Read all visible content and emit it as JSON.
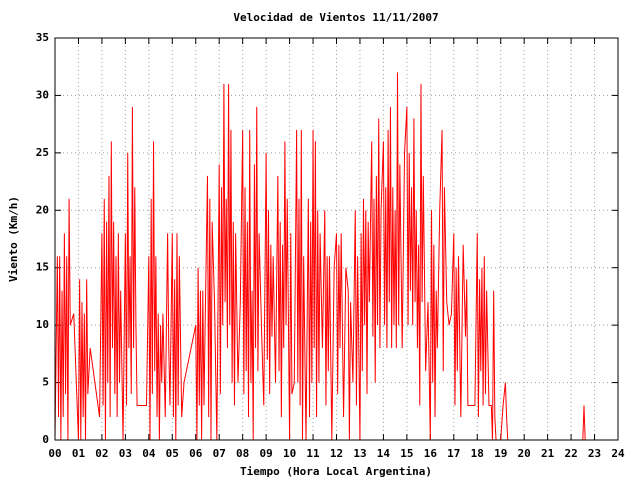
{
  "chart_data": {
    "type": "line",
    "title": "Velocidad de Vientos 11/11/2007",
    "xlabel": "Tiempo (Hora Local Argentina)",
    "ylabel": "Viento (Km/h)",
    "color": "#ff0000",
    "grid": true,
    "xlim": [
      0,
      24
    ],
    "ylim": [
      0,
      35
    ],
    "xticks": [
      {
        "value": 0,
        "label": "00"
      },
      {
        "value": 1,
        "label": "01"
      },
      {
        "value": 2,
        "label": "02"
      },
      {
        "value": 3,
        "label": "03"
      },
      {
        "value": 4,
        "label": "04"
      },
      {
        "value": 5,
        "label": "05"
      },
      {
        "value": 6,
        "label": "06"
      },
      {
        "value": 7,
        "label": "07"
      },
      {
        "value": 8,
        "label": "08"
      },
      {
        "value": 9,
        "label": "09"
      },
      10,
      11,
      12,
      13,
      14,
      15,
      16,
      17,
      18,
      19,
      20,
      21,
      22,
      23,
      24
    ],
    "yticks": [
      0,
      5,
      10,
      15,
      20,
      25,
      30,
      35
    ],
    "x": [
      0,
      0.05,
      0.1,
      0.15,
      0.2,
      0.25,
      0.3,
      0.35,
      0.4,
      0.45,
      0.5,
      0.55,
      0.6,
      0.65,
      0.8,
      1.0,
      1.05,
      1.1,
      1.15,
      1.2,
      1.25,
      1.3,
      1.35,
      1.4,
      1.5,
      1.7,
      1.9,
      2.0,
      2.05,
      2.1,
      2.15,
      2.2,
      2.25,
      2.3,
      2.35,
      2.4,
      2.45,
      2.5,
      2.55,
      2.6,
      2.65,
      2.7,
      2.75,
      2.8,
      2.9,
      3.0,
      3.05,
      3.1,
      3.15,
      3.2,
      3.25,
      3.3,
      3.35,
      3.4,
      3.45,
      3.5,
      3.6,
      3.9,
      4.0,
      4.05,
      4.1,
      4.15,
      4.2,
      4.25,
      4.3,
      4.35,
      4.4,
      4.45,
      4.5,
      4.55,
      4.6,
      4.7,
      4.8,
      4.85,
      4.9,
      5.0,
      5.05,
      5.1,
      5.15,
      5.2,
      5.25,
      5.3,
      5.4,
      5.5,
      5.8,
      6.0,
      6.05,
      6.1,
      6.15,
      6.2,
      6.25,
      6.3,
      6.35,
      6.4,
      6.5,
      6.55,
      6.6,
      6.65,
      6.7,
      6.8,
      6.9,
      7.0,
      7.05,
      7.1,
      7.15,
      7.2,
      7.25,
      7.3,
      7.35,
      7.4,
      7.45,
      7.5,
      7.55,
      7.6,
      7.65,
      7.7,
      7.8,
      7.9,
      8.0,
      8.05,
      8.1,
      8.15,
      8.2,
      8.25,
      8.3,
      8.35,
      8.4,
      8.45,
      8.5,
      8.55,
      8.6,
      8.65,
      8.7,
      8.8,
      8.9,
      9.0,
      9.05,
      9.1,
      9.15,
      9.2,
      9.25,
      9.3,
      9.4,
      9.5,
      9.55,
      9.6,
      9.65,
      9.7,
      9.75,
      9.8,
      9.85,
      9.9,
      10.0,
      10.05,
      10.1,
      10.2,
      10.3,
      10.35,
      10.4,
      10.45,
      10.5,
      10.55,
      10.6,
      10.7,
      10.8,
      10.85,
      10.9,
      10.95,
      11.0,
      11.05,
      11.1,
      11.15,
      11.2,
      11.25,
      11.3,
      11.4,
      11.5,
      11.55,
      11.6,
      11.65,
      11.7,
      11.8,
      11.9,
      12.0,
      12.05,
      12.1,
      12.15,
      12.2,
      12.3,
      12.4,
      12.5,
      12.55,
      12.6,
      12.7,
      12.8,
      12.85,
      12.9,
      13.0,
      13.05,
      13.1,
      13.15,
      13.2,
      13.25,
      13.3,
      13.35,
      13.4,
      13.5,
      13.55,
      13.6,
      13.65,
      13.7,
      13.75,
      13.8,
      13.85,
      13.9,
      14.0,
      14.05,
      14.1,
      14.15,
      14.2,
      14.25,
      14.3,
      14.35,
      14.4,
      14.45,
      14.5,
      14.55,
      14.6,
      14.65,
      14.7,
      14.8,
      14.9,
      15.0,
      15.05,
      15.1,
      15.15,
      15.2,
      15.25,
      15.3,
      15.35,
      15.4,
      15.45,
      15.5,
      15.55,
      15.6,
      15.65,
      15.7,
      15.8,
      15.9,
      16.0,
      16.05,
      16.1,
      16.15,
      16.2,
      16.25,
      16.3,
      16.4,
      16.5,
      16.55,
      16.6,
      16.7,
      16.8,
      16.9,
      17.0,
      17.05,
      17.1,
      17.15,
      17.2,
      17.3,
      17.4,
      17.5,
      17.55,
      17.6,
      17.7,
      17.8,
      17.9,
      18.0,
      18.05,
      18.1,
      18.15,
      18.2,
      18.25,
      18.3,
      18.35,
      18.4,
      18.5,
      18.6,
      18.65,
      18.7,
      18.75,
      18.8,
      19.0,
      19.1,
      19.2,
      19.25,
      19.3,
      19.35,
      22.5,
      22.55,
      22.6
    ],
    "values": [
      0,
      8,
      16,
      2,
      16,
      0,
      13,
      2,
      18,
      4,
      16,
      0,
      21,
      10,
      11,
      0,
      14,
      0,
      12,
      2,
      11,
      0,
      14,
      4,
      8,
      5,
      2,
      18,
      3,
      21,
      0,
      19,
      5,
      23,
      2,
      26,
      8,
      19,
      4,
      16,
      2,
      18,
      5,
      13,
      0,
      18,
      3,
      25,
      8,
      16,
      4,
      29,
      8,
      22,
      10,
      3,
      3,
      3,
      16,
      0,
      21,
      4,
      26,
      6,
      16,
      2,
      11,
      0,
      10,
      5,
      11,
      2,
      18,
      8,
      3,
      18,
      2,
      14,
      0,
      18,
      3,
      16,
      2,
      5,
      8,
      10,
      0,
      15,
      3,
      13,
      0,
      13,
      3,
      10,
      23,
      2,
      21,
      0,
      19,
      12,
      0,
      24,
      4,
      22,
      10,
      31,
      12,
      21,
      8,
      31,
      10,
      27,
      5,
      19,
      3,
      18,
      5,
      12,
      27,
      4,
      22,
      6,
      19,
      2,
      27,
      5,
      13,
      0,
      24,
      8,
      29,
      6,
      18,
      10,
      3,
      25,
      7,
      20,
      4,
      17,
      9,
      16,
      5,
      23,
      6,
      19,
      2,
      17,
      8,
      26,
      10,
      21,
      0,
      18,
      4,
      5,
      27,
      5,
      21,
      3,
      27,
      0,
      16,
      0,
      21,
      2,
      19,
      5,
      27,
      8,
      26,
      2,
      20,
      5,
      18,
      8,
      20,
      3,
      16,
      6,
      16,
      0,
      15,
      18,
      4,
      17,
      8,
      18,
      2,
      15,
      13,
      0,
      12,
      5,
      20,
      3,
      16,
      0,
      18,
      6,
      21,
      10,
      20,
      4,
      19,
      12,
      26,
      9,
      21,
      5,
      23,
      10,
      28,
      8,
      20,
      26,
      10,
      22,
      8,
      27,
      12,
      29,
      8,
      22,
      10,
      20,
      8,
      32,
      10,
      24,
      8,
      25,
      29,
      10,
      25,
      13,
      22,
      10,
      28,
      12,
      20,
      8,
      17,
      3,
      31,
      12,
      23,
      6,
      12,
      0,
      20,
      5,
      17,
      2,
      13,
      8,
      20,
      27,
      6,
      22,
      12,
      10,
      11,
      18,
      3,
      15,
      6,
      16,
      2,
      17,
      9,
      14,
      3,
      3,
      3,
      3,
      18,
      2,
      14,
      6,
      15,
      3,
      16,
      4,
      13,
      3,
      3,
      0,
      13,
      2,
      0,
      0,
      3,
      5,
      2,
      0,
      null,
      0,
      3,
      0
    ]
  }
}
